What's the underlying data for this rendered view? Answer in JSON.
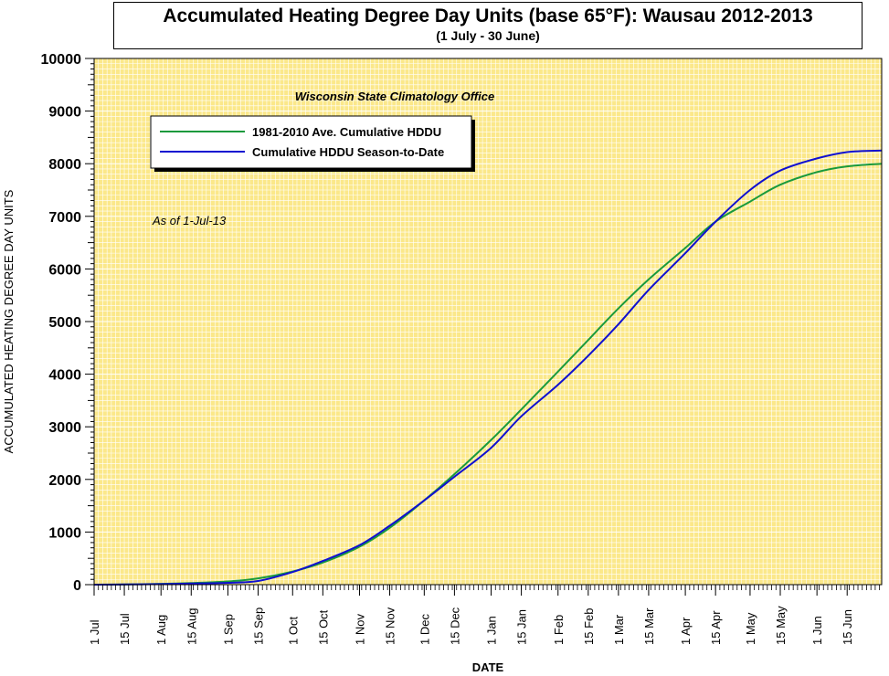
{
  "title": "Accumulated Heating Degree Day Units (base 65°F): Wausau 2012-2013",
  "subtitle": "(1 July - 30 June)",
  "annotation_office": "Wisconsin State Climatology Office",
  "annotation_asof": "As of 1-Jul-13",
  "colors": {
    "plot_background": "#fbe88a",
    "grid": "#ffffff",
    "average_series": "#1a9a3c",
    "season_series": "#1010d0"
  },
  "chart_data": {
    "type": "line",
    "title": "Accumulated Heating Degree Day Units (base 65°F): Wausau 2012-2013",
    "subtitle": "(1 July - 30 June)",
    "xlabel": "DATE",
    "ylabel": "ACCUMULATED HEATING DEGREE DAY UNITS",
    "ylim": [
      0,
      10000
    ],
    "yticks": [
      0,
      1000,
      2000,
      3000,
      4000,
      5000,
      6000,
      7000,
      8000,
      9000,
      10000
    ],
    "xlim": [
      "2012-07-01",
      "2013-07-01"
    ],
    "xticks": [
      {
        "date": "2012-07-01",
        "label": "1 Jul"
      },
      {
        "date": "2012-07-15",
        "label": "15 Jul"
      },
      {
        "date": "2012-08-01",
        "label": "1 Aug"
      },
      {
        "date": "2012-08-15",
        "label": "15 Aug"
      },
      {
        "date": "2012-09-01",
        "label": "1 Sep"
      },
      {
        "date": "2012-09-15",
        "label": "15 Sep"
      },
      {
        "date": "2012-10-01",
        "label": "1 Oct"
      },
      {
        "date": "2012-10-15",
        "label": "15 Oct"
      },
      {
        "date": "2012-11-01",
        "label": "1 Nov"
      },
      {
        "date": "2012-11-15",
        "label": "15 Nov"
      },
      {
        "date": "2012-12-01",
        "label": "1 Dec"
      },
      {
        "date": "2012-12-15",
        "label": "15 Dec"
      },
      {
        "date": "2013-01-01",
        "label": "1 Jan"
      },
      {
        "date": "2013-01-15",
        "label": "15 Jan"
      },
      {
        "date": "2013-02-01",
        "label": "1 Feb"
      },
      {
        "date": "2013-02-15",
        "label": "15 Feb"
      },
      {
        "date": "2013-03-01",
        "label": "1 Mar"
      },
      {
        "date": "2013-03-15",
        "label": "15 Mar"
      },
      {
        "date": "2013-04-01",
        "label": "1 Apr"
      },
      {
        "date": "2013-04-15",
        "label": "15 Apr"
      },
      {
        "date": "2013-05-01",
        "label": "1 May"
      },
      {
        "date": "2013-05-15",
        "label": "15 May"
      },
      {
        "date": "2013-06-01",
        "label": "1 Jun"
      },
      {
        "date": "2013-06-15",
        "label": "15 Jun"
      }
    ],
    "grid": true,
    "legend_position": "top-left",
    "series": [
      {
        "name": "1981-2010 Ave. Cumulative HDDU",
        "color": "#1a9a3c",
        "points": [
          [
            "2012-07-01",
            0
          ],
          [
            "2012-07-15",
            5
          ],
          [
            "2012-08-01",
            15
          ],
          [
            "2012-08-15",
            30
          ],
          [
            "2012-09-01",
            60
          ],
          [
            "2012-09-15",
            120
          ],
          [
            "2012-10-01",
            250
          ],
          [
            "2012-10-15",
            420
          ],
          [
            "2012-11-01",
            720
          ],
          [
            "2012-11-15",
            1080
          ],
          [
            "2012-12-01",
            1600
          ],
          [
            "2012-12-15",
            2100
          ],
          [
            "2013-01-01",
            2750
          ],
          [
            "2013-01-15",
            3330
          ],
          [
            "2013-02-01",
            4050
          ],
          [
            "2013-02-15",
            4650
          ],
          [
            "2013-03-01",
            5250
          ],
          [
            "2013-03-15",
            5800
          ],
          [
            "2013-04-01",
            6400
          ],
          [
            "2013-04-15",
            6900
          ],
          [
            "2013-05-01",
            7280
          ],
          [
            "2013-05-15",
            7600
          ],
          [
            "2013-06-01",
            7840
          ],
          [
            "2013-06-15",
            7950
          ],
          [
            "2013-07-01",
            8000
          ]
        ]
      },
      {
        "name": "Cumulative HDDU Season-to-Date",
        "color": "#1010d0",
        "points": [
          [
            "2012-07-01",
            0
          ],
          [
            "2012-07-15",
            3
          ],
          [
            "2012-08-01",
            10
          ],
          [
            "2012-08-15",
            20
          ],
          [
            "2012-09-01",
            35
          ],
          [
            "2012-09-15",
            70
          ],
          [
            "2012-10-01",
            240
          ],
          [
            "2012-10-15",
            450
          ],
          [
            "2012-11-01",
            750
          ],
          [
            "2012-11-15",
            1120
          ],
          [
            "2012-12-01",
            1600
          ],
          [
            "2012-12-15",
            2050
          ],
          [
            "2013-01-01",
            2600
          ],
          [
            "2013-01-15",
            3200
          ],
          [
            "2013-02-01",
            3800
          ],
          [
            "2013-02-15",
            4350
          ],
          [
            "2013-03-01",
            4950
          ],
          [
            "2013-03-15",
            5600
          ],
          [
            "2013-04-01",
            6300
          ],
          [
            "2013-04-15",
            6900
          ],
          [
            "2013-05-01",
            7500
          ],
          [
            "2013-05-15",
            7870
          ],
          [
            "2013-06-01",
            8100
          ],
          [
            "2013-06-15",
            8220
          ],
          [
            "2013-07-01",
            8250
          ]
        ]
      }
    ]
  }
}
